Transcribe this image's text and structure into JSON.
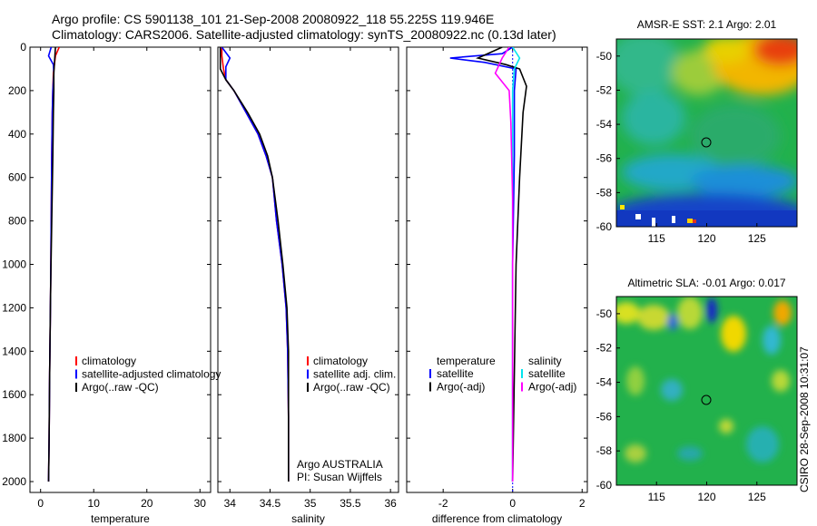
{
  "header": {
    "line1": "Argo profile: CS 5901138_101 21-Sep-2008 20080922_118 55.225S 119.946E",
    "line2": "Climatology: CARS2006. Satellite-adjusted climatology: synTS_20080922.nc (0.13d later)"
  },
  "side_label": "CSIRO 28-Sep-2008 10:31:07",
  "colors": {
    "climatology": "#ff0000",
    "satellite": "#0000ff",
    "argo": "#000000",
    "satellite_salinity": "#00e5ee",
    "argo_adj_salinity": "#ff00ff"
  },
  "chart_data": [
    {
      "type": "line",
      "xlabel": "temperature",
      "xticks": [
        "0",
        "10",
        "20",
        "30"
      ],
      "yticks": [
        "0",
        "200",
        "400",
        "600",
        "800",
        "1000",
        "1200",
        "1400",
        "1600",
        "1800",
        "2000"
      ],
      "xlim": [
        -2,
        32
      ],
      "ylim": [
        2050,
        0
      ],
      "legend": [
        "climatology",
        "satellite-adjusted climatology",
        "Argo(..raw -QC)"
      ],
      "series": [
        {
          "name": "climatology",
          "points": [
            [
              3.5,
              0
            ],
            [
              2.8,
              40
            ],
            [
              2.6,
              80
            ],
            [
              2.4,
              120
            ],
            [
              2.3,
              200
            ],
            [
              2.2,
              300
            ],
            [
              2.1,
              500
            ],
            [
              2.0,
              800
            ],
            [
              1.9,
              1100
            ],
            [
              1.7,
              1500
            ],
            [
              1.6,
              1800
            ],
            [
              1.5,
              2000
            ]
          ]
        },
        {
          "name": "satellite-adjusted climatology",
          "points": [
            [
              2.0,
              0
            ],
            [
              1.5,
              40
            ],
            [
              2.4,
              80
            ],
            [
              2.5,
              120
            ],
            [
              2.3,
              200
            ],
            [
              2.2,
              300
            ],
            [
              2.1,
              500
            ],
            [
              2.0,
              800
            ],
            [
              1.9,
              1100
            ],
            [
              1.7,
              1500
            ],
            [
              1.6,
              1800
            ],
            [
              1.5,
              2000
            ]
          ]
        },
        {
          "name": "Argo(..raw -QC)",
          "points": [
            [
              2.8,
              0
            ],
            [
              2.7,
              40
            ],
            [
              2.6,
              80
            ],
            [
              2.5,
              120
            ],
            [
              2.5,
              200
            ],
            [
              2.4,
              300
            ],
            [
              2.3,
              500
            ],
            [
              2.1,
              800
            ],
            [
              1.9,
              1100
            ],
            [
              1.7,
              1500
            ],
            [
              1.6,
              1800
            ],
            [
              1.5,
              2000
            ]
          ]
        }
      ]
    },
    {
      "type": "line",
      "xlabel": "salinity",
      "xticks": [
        "34",
        "34.5",
        "35",
        "35.5",
        "36"
      ],
      "yticks": [],
      "xlim": [
        33.85,
        36.1
      ],
      "ylim": [
        2050,
        0
      ],
      "legend": [
        "climatology",
        "satellite adj. clim.",
        "Argo(..raw -QC)"
      ],
      "annotation": [
        "Argo AUSTRALIA",
        "PI: Susan Wijffels"
      ],
      "series": [
        {
          "name": "climatology",
          "points": [
            [
              33.9,
              0
            ],
            [
              33.9,
              40
            ],
            [
              33.92,
              100
            ],
            [
              33.95,
              150
            ],
            [
              34.05,
              200
            ],
            [
              34.2,
              300
            ],
            [
              34.35,
              400
            ],
            [
              34.45,
              500
            ],
            [
              34.53,
              600
            ],
            [
              34.58,
              800
            ],
            [
              34.65,
              1000
            ],
            [
              34.7,
              1200
            ],
            [
              34.72,
              1400
            ],
            [
              34.73,
              1700
            ],
            [
              34.73,
              2000
            ]
          ]
        },
        {
          "name": "satellite adj. clim.",
          "points": [
            [
              33.9,
              0
            ],
            [
              34.0,
              50
            ],
            [
              33.95,
              90
            ],
            [
              33.95,
              150
            ],
            [
              34.05,
              200
            ],
            [
              34.2,
              300
            ],
            [
              34.35,
              400
            ],
            [
              34.45,
              500
            ],
            [
              34.53,
              600
            ],
            [
              34.58,
              800
            ],
            [
              34.65,
              1000
            ],
            [
              34.7,
              1200
            ],
            [
              34.72,
              1400
            ],
            [
              34.73,
              1700
            ],
            [
              34.73,
              2000
            ]
          ]
        },
        {
          "name": "Argo(..raw -QC)",
          "points": [
            [
              33.88,
              0
            ],
            [
              33.88,
              100
            ],
            [
              33.95,
              150
            ],
            [
              34.05,
              200
            ],
            [
              34.22,
              300
            ],
            [
              34.37,
              400
            ],
            [
              34.47,
              500
            ],
            [
              34.53,
              600
            ],
            [
              34.6,
              800
            ],
            [
              34.66,
              1000
            ],
            [
              34.71,
              1200
            ],
            [
              34.73,
              1400
            ],
            [
              34.73,
              1700
            ],
            [
              34.73,
              2000
            ]
          ]
        }
      ]
    },
    {
      "type": "line",
      "xlabel": "difference from climatology",
      "xticks": [
        "-2",
        "0",
        "2"
      ],
      "yticks": [],
      "xlim": [
        -3.05,
        2.15
      ],
      "ylim": [
        2050,
        0
      ],
      "legend_left_title": "temperature",
      "legend_right_title": "salinity",
      "legend_left": [
        "satellite",
        "Argo(-adj)"
      ],
      "legend_right": [
        "satellite",
        "Argo(-adj)"
      ],
      "series": [
        {
          "name": "temperature satellite",
          "points": [
            [
              0,
              0
            ],
            [
              -0.3,
              30
            ],
            [
              -1.8,
              50
            ],
            [
              -0.8,
              70
            ],
            [
              0.1,
              100
            ],
            [
              0.05,
              200
            ],
            [
              0.05,
              500
            ],
            [
              0.0,
              1000
            ],
            [
              0.0,
              2000
            ]
          ]
        },
        {
          "name": "temperature Argo(-adj)",
          "points": [
            [
              -0.3,
              0
            ],
            [
              -1.0,
              50
            ],
            [
              -0.2,
              80
            ],
            [
              0.2,
              100
            ],
            [
              0.4,
              180
            ],
            [
              0.3,
              300
            ],
            [
              0.2,
              600
            ],
            [
              0.1,
              1000
            ],
            [
              0.0,
              2000
            ]
          ]
        },
        {
          "name": "salinity satellite",
          "points": [
            [
              0.0,
              0
            ],
            [
              0.2,
              50
            ],
            [
              0.05,
              100
            ],
            [
              0.0,
              200
            ],
            [
              0.0,
              500
            ],
            [
              0.0,
              2000
            ]
          ]
        },
        {
          "name": "salinity Argo(-adj)",
          "points": [
            [
              -0.1,
              0
            ],
            [
              -0.3,
              50
            ],
            [
              -0.5,
              120
            ],
            [
              -0.1,
              200
            ],
            [
              -0.05,
              350
            ],
            [
              0.0,
              700
            ],
            [
              0.0,
              2000
            ]
          ]
        }
      ]
    },
    {
      "type": "heatmap",
      "title": "AMSR-E SST: 2.1 Argo: 2.01",
      "xticks": [
        "115",
        "120",
        "125"
      ],
      "yticks": [
        "-50",
        "-52",
        "-54",
        "-56",
        "-58",
        "-60"
      ],
      "xlim": [
        111,
        129
      ],
      "ylim": [
        -60,
        -49
      ],
      "marker": {
        "lon": 119.946,
        "lat": -55.225
      }
    },
    {
      "type": "heatmap",
      "title": "Altimetric SLA: -0.01 Argo: 0.017",
      "xticks": [
        "115",
        "120",
        "125"
      ],
      "yticks": [
        "-50",
        "-52",
        "-54",
        "-56",
        "-58",
        "-60"
      ],
      "xlim": [
        111,
        129
      ],
      "ylim": [
        -60,
        -49
      ],
      "marker": {
        "lon": 119.946,
        "lat": -55.225
      }
    }
  ]
}
